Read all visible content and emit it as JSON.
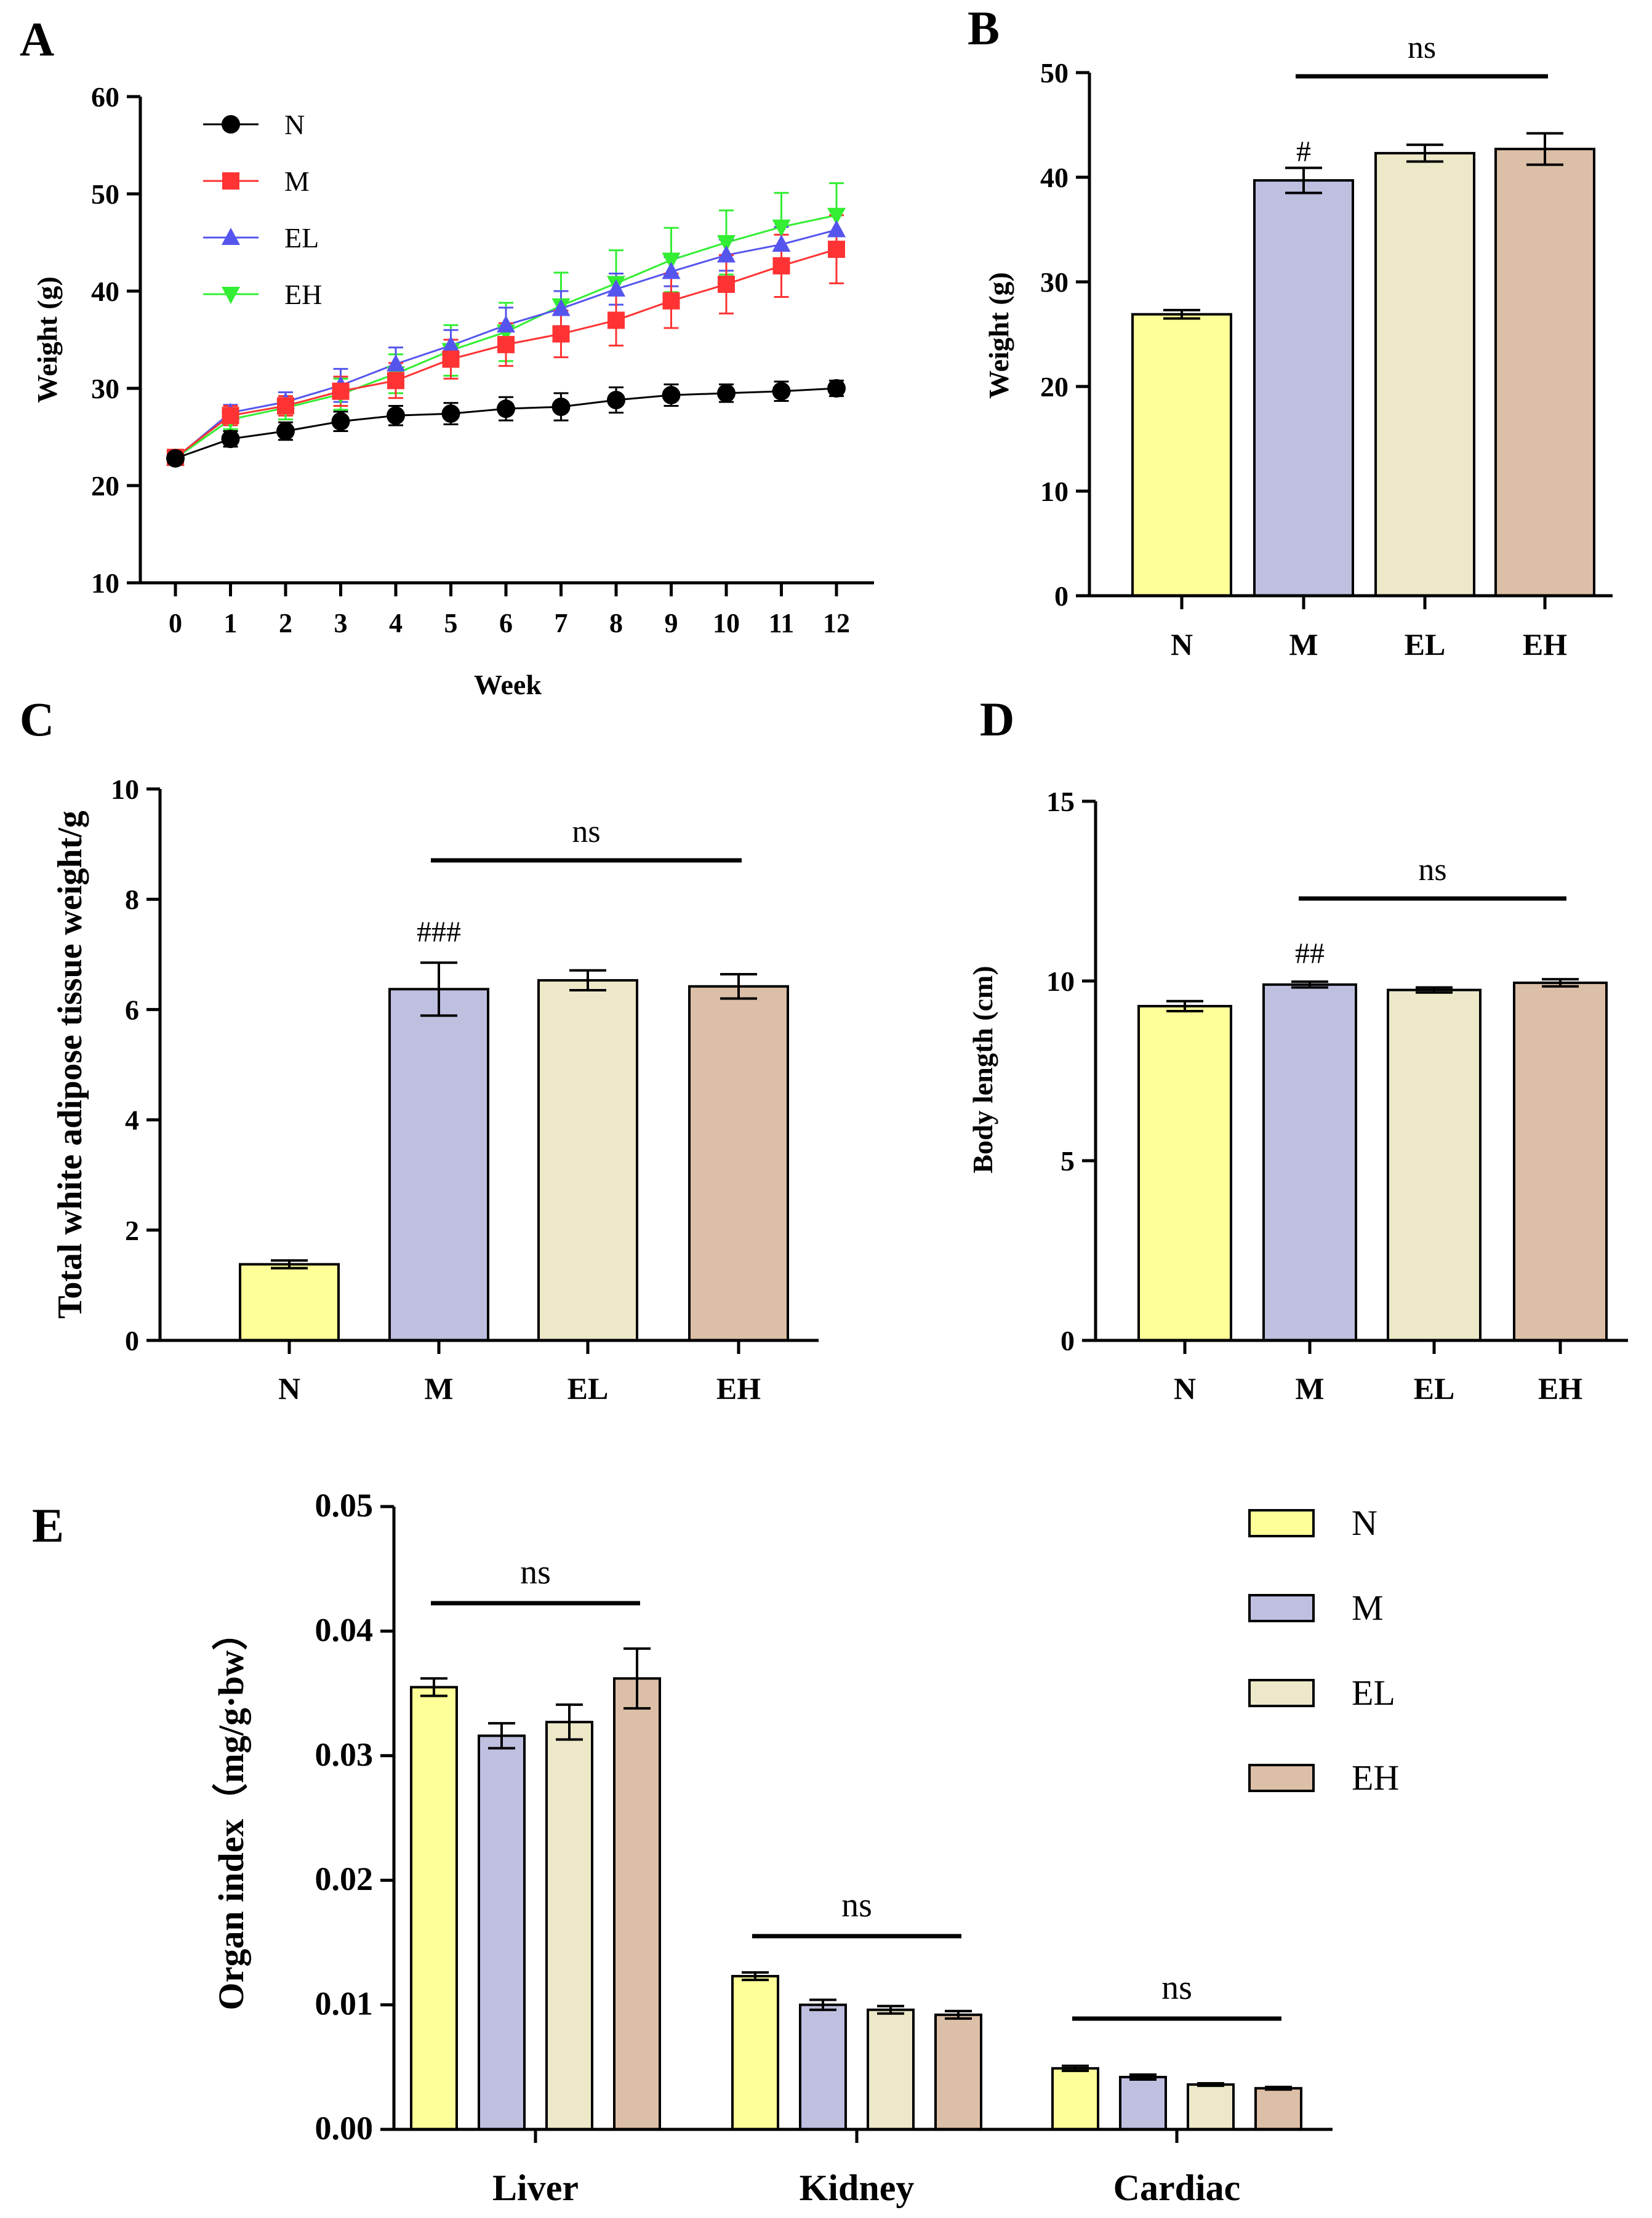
{
  "colors": {
    "N": "#FFFF99",
    "M": "#BFBFE0",
    "EL": "#EDE8C8",
    "EH": "#DBBFA6",
    "line_N": "#000000",
    "line_M": "#FF3333",
    "line_EL": "#5555EE",
    "line_EH": "#33EE33"
  },
  "chart_data": [
    {
      "panel": "A",
      "type": "line",
      "xlabel": "Week",
      "ylabel": "Weight (g)",
      "x": [
        0,
        1,
        2,
        3,
        4,
        5,
        6,
        7,
        8,
        9,
        10,
        11,
        12
      ],
      "x_ticks": [
        "0",
        "1",
        "2",
        "3",
        "4",
        "5",
        "6",
        "7",
        "8",
        "9",
        "10",
        "11",
        "12"
      ],
      "ylim": [
        10,
        60
      ],
      "y_ticks": [
        "10",
        "20",
        "30",
        "40",
        "50",
        "60"
      ],
      "series": [
        {
          "name": "N",
          "marker": "circle",
          "values": [
            22.8,
            24.8,
            25.6,
            26.6,
            27.2,
            27.4,
            27.9,
            28.1,
            28.8,
            29.3,
            29.5,
            29.7,
            30.0
          ],
          "errors": [
            0.6,
            0.8,
            0.9,
            1.0,
            1.0,
            1.1,
            1.2,
            1.4,
            1.3,
            1.1,
            0.9,
            1.0,
            0.8
          ]
        },
        {
          "name": "M",
          "marker": "square",
          "values": [
            22.9,
            27.2,
            28.2,
            29.7,
            30.8,
            33.0,
            34.5,
            35.6,
            37.0,
            39.0,
            40.7,
            42.6,
            44.3
          ],
          "errors": [
            0.4,
            1.0,
            1.0,
            1.5,
            1.8,
            2.0,
            2.2,
            2.4,
            2.6,
            2.8,
            3.0,
            3.2,
            3.5
          ]
        },
        {
          "name": "EL",
          "marker": "triangle-up",
          "values": [
            22.8,
            27.5,
            28.6,
            30.3,
            32.5,
            34.4,
            36.5,
            38.2,
            40.2,
            42.0,
            43.7,
            44.8,
            46.3
          ],
          "errors": [
            0.3,
            0.8,
            1.0,
            1.7,
            1.7,
            1.6,
            1.8,
            1.8,
            1.6,
            1.5,
            1.6,
            1.8,
            2.0
          ]
        },
        {
          "name": "EH",
          "marker": "triangle-down",
          "values": [
            22.8,
            26.8,
            28.0,
            29.4,
            31.5,
            33.9,
            35.8,
            38.5,
            40.8,
            43.2,
            45.0,
            46.6,
            47.8
          ],
          "errors": [
            0.6,
            1.0,
            1.2,
            1.6,
            2.0,
            2.6,
            3.0,
            3.4,
            3.4,
            3.3,
            3.3,
            3.5,
            3.3
          ]
        }
      ]
    },
    {
      "panel": "B",
      "type": "bar",
      "ylabel": "Weight (g)",
      "categories": [
        "N",
        "M",
        "EL",
        "EH"
      ],
      "values": [
        26.9,
        39.7,
        42.3,
        42.7
      ],
      "errors": [
        0.4,
        1.2,
        0.8,
        1.5
      ],
      "ylim": [
        0,
        50
      ],
      "y_ticks": [
        "0",
        "10",
        "20",
        "30",
        "40",
        "50"
      ],
      "annotations": [
        "#"
      ],
      "significance": "ns"
    },
    {
      "panel": "C",
      "type": "bar",
      "ylabel": "Total white adipose tissue weight/g",
      "categories": [
        "N",
        "M",
        "EL",
        "EH"
      ],
      "values": [
        1.38,
        6.37,
        6.53,
        6.42
      ],
      "errors": [
        0.07,
        0.48,
        0.18,
        0.22
      ],
      "ylim": [
        0,
        10
      ],
      "y_ticks": [
        "0",
        "2",
        "4",
        "6",
        "8",
        "10"
      ],
      "annotations": [
        "###"
      ],
      "significance": "ns"
    },
    {
      "panel": "D",
      "type": "bar",
      "ylabel": "Body length (cm)",
      "categories": [
        "N",
        "M",
        "EL",
        "EH"
      ],
      "values": [
        9.3,
        9.9,
        9.75,
        9.95
      ],
      "errors": [
        0.14,
        0.08,
        0.07,
        0.1
      ],
      "ylim": [
        0,
        15
      ],
      "y_ticks": [
        "0",
        "5",
        "10",
        "15"
      ],
      "annotations": [
        "##"
      ],
      "significance": "ns"
    },
    {
      "panel": "E",
      "type": "bar",
      "ylabel": "Organ index（mg/g·bw）",
      "categories": [
        "Liver",
        "Kidney",
        "Cardiac"
      ],
      "series": [
        {
          "name": "N",
          "values": [
            0.0355,
            0.0123,
            0.0049
          ],
          "errors": [
            0.0007,
            0.0003,
            0.0002
          ]
        },
        {
          "name": "M",
          "values": [
            0.0316,
            0.01,
            0.0042
          ],
          "errors": [
            0.001,
            0.0004,
            0.0002
          ]
        },
        {
          "name": "EL",
          "values": [
            0.0327,
            0.0096,
            0.0036
          ],
          "errors": [
            0.0014,
            0.0003,
            0.0001
          ]
        },
        {
          "name": "EH",
          "values": [
            0.0362,
            0.0092,
            0.0033
          ],
          "errors": [
            0.0024,
            0.0003,
            0.0001
          ]
        }
      ],
      "ylim": [
        0,
        0.05
      ],
      "y_ticks": [
        "0.00",
        "0.01",
        "0.02",
        "0.03",
        "0.04",
        "0.05"
      ],
      "significance": [
        "ns",
        "ns",
        "ns"
      ]
    }
  ]
}
